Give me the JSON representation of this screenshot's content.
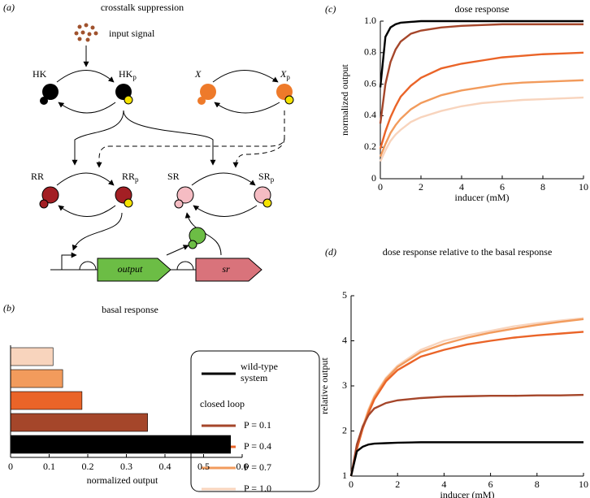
{
  "diagram": {
    "panel_label": "(a)",
    "title": "crosstalk suppression",
    "input": "input signal",
    "hk": {
      "text": "HK"
    },
    "hkp": {
      "text": "HK",
      "sub": "p"
    },
    "x": {
      "text": "X"
    },
    "xp": {
      "text": "X",
      "sub": "p"
    },
    "rr": {
      "text": "RR"
    },
    "rrp": {
      "text": "RR",
      "sub": "p"
    },
    "sr": {
      "text": "SR"
    },
    "srp": {
      "text": "SR",
      "sub": "p"
    },
    "gene_output": "output",
    "gene_sr": "sr"
  },
  "chart_data": [
    {
      "type": "line",
      "panel_label": "(c)",
      "title": "dose response",
      "xlabel": "inducer (mM)",
      "ylabel": "normalized output",
      "legend_title": "closed loop",
      "x": [
        0,
        0.25,
        0.5,
        0.75,
        1,
        1.5,
        2,
        3,
        4,
        5,
        6,
        7,
        8,
        9,
        10
      ],
      "xlim": [
        0,
        10
      ],
      "xticks": [
        0,
        2,
        4,
        6,
        8,
        10
      ],
      "ylim": [
        0,
        1
      ],
      "yticks": [
        0,
        0.2,
        0.4,
        0.6,
        0.8,
        {
          "value": 1,
          "label": "1.0"
        }
      ],
      "series": [
        {
          "name": "wild-type system",
          "color": "#000000",
          "values": [
            0.58,
            0.9,
            0.96,
            0.98,
            0.99,
            0.995,
            1,
            1,
            1,
            1,
            1,
            1,
            1,
            1,
            1
          ]
        },
        {
          "name": "P = 0.1",
          "color": "#a5462a",
          "values": [
            0.35,
            0.6,
            0.74,
            0.82,
            0.87,
            0.92,
            0.94,
            0.96,
            0.97,
            0.975,
            0.98,
            0.98,
            0.98,
            0.98,
            0.98
          ]
        },
        {
          "name": "P = 0.4",
          "color": "#ea6428",
          "values": [
            0.19,
            0.3,
            0.39,
            0.46,
            0.52,
            0.59,
            0.64,
            0.7,
            0.73,
            0.75,
            0.77,
            0.78,
            0.79,
            0.795,
            0.8
          ]
        },
        {
          "name": "P = 0.7",
          "color": "#f29b5c",
          "values": [
            0.14,
            0.22,
            0.29,
            0.34,
            0.38,
            0.44,
            0.48,
            0.53,
            0.56,
            0.58,
            0.6,
            0.61,
            0.615,
            0.62,
            0.625
          ]
        },
        {
          "name": "P = 1.0",
          "color": "#f8d4bd",
          "values": [
            0.11,
            0.18,
            0.24,
            0.28,
            0.31,
            0.36,
            0.39,
            0.43,
            0.46,
            0.48,
            0.49,
            0.5,
            0.505,
            0.51,
            0.515
          ]
        }
      ]
    },
    {
      "type": "line",
      "panel_label": "(d)",
      "title": "dose response relative to the basal response",
      "xlabel": "inducer (mM)",
      "ylabel": "relative output",
      "x": [
        0,
        0.25,
        0.5,
        0.75,
        1,
        1.5,
        2,
        3,
        4,
        5,
        6,
        7,
        8,
        9,
        10
      ],
      "xlim": [
        0,
        10
      ],
      "xticks": [
        0,
        2,
        4,
        6,
        8,
        10
      ],
      "ylim": [
        1,
        5
      ],
      "yticks": [
        1,
        2,
        3,
        4,
        5
      ],
      "series": [
        {
          "name": "wild-type system",
          "color": "#000000",
          "values": [
            1,
            1.55,
            1.65,
            1.7,
            1.72,
            1.73,
            1.74,
            1.75,
            1.75,
            1.75,
            1.75,
            1.75,
            1.75,
            1.75,
            1.75
          ]
        },
        {
          "name": "P = 0.1",
          "color": "#a5462a",
          "values": [
            1,
            1.7,
            2.1,
            2.35,
            2.5,
            2.62,
            2.68,
            2.73,
            2.76,
            2.77,
            2.78,
            2.78,
            2.79,
            2.79,
            2.8
          ]
        },
        {
          "name": "P = 0.4",
          "color": "#ea6428",
          "values": [
            1,
            1.6,
            2.05,
            2.4,
            2.7,
            3.1,
            3.35,
            3.65,
            3.8,
            3.92,
            4,
            4.07,
            4.12,
            4.16,
            4.2
          ]
        },
        {
          "name": "P = 0.7",
          "color": "#f29b5c",
          "values": [
            1,
            1.6,
            2.07,
            2.45,
            2.75,
            3.15,
            3.42,
            3.75,
            3.93,
            4.07,
            4.18,
            4.27,
            4.35,
            4.42,
            4.48
          ]
        },
        {
          "name": "P = 1.0",
          "color": "#f8d4bd",
          "values": [
            1,
            1.62,
            2.1,
            2.48,
            2.78,
            3.18,
            3.45,
            3.8,
            4,
            4.12,
            4.22,
            4.32,
            4.39,
            4.45,
            4.5
          ]
        }
      ]
    },
    {
      "type": "hbar",
      "panel_label": "(b)",
      "title": "basal response",
      "xlabel": "normalized output",
      "categories": [
        null,
        null,
        null,
        null,
        null
      ],
      "values": [
        0.11,
        0.135,
        0.185,
        0.355,
        0.57
      ],
      "colors": [
        "#f8d4bd",
        "#f29b5c",
        "#ea6428",
        "#a5462a",
        "#000000"
      ],
      "xlim": [
        0,
        0.6
      ],
      "xticks": [
        0,
        0.1,
        0.2,
        0.3,
        0.4,
        0.5,
        0.6
      ]
    }
  ]
}
